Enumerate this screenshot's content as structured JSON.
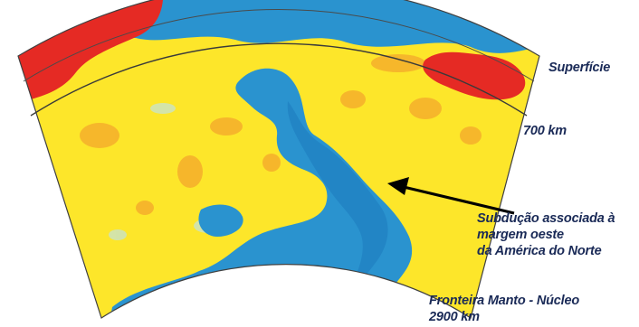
{
  "labels": {
    "surface": "Superfície",
    "depth_700": "700 km",
    "subduction_line1": "Subdução associada à",
    "subduction_line2": "margem oeste",
    "subduction_line3": "da América do Norte",
    "boundary_line1": "Fronteira Manto - Núcleo",
    "boundary_line2": "2900 km"
  },
  "colors": {
    "fast_blue": "#2a93cf",
    "deep_blue": "#1f7fc0",
    "slow_yellow": "#fde62a",
    "orange": "#f5ae2c",
    "hot_red": "#e52a24",
    "pale_cyan": "#c9e3c8",
    "label_text": "#1a2a57",
    "arrow": "#000000"
  }
}
